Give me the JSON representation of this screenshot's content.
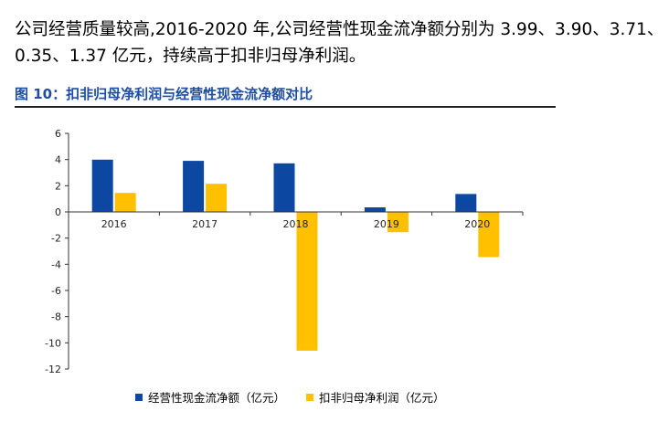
{
  "paragraph": {
    "line1": "公司经营质量较高,2016-2020 年,公司经营性现金流净额分别为 3.99、3.90、3.71、",
    "line2": "0.35、1.37 亿元，持续高于扣非归母净利润。"
  },
  "figure": {
    "title": "图 10：扣非归母净利润与经营性现金流净额对比"
  },
  "colors": {
    "series1": "#0c47a1",
    "series2": "#ffc000",
    "axis": "#333333",
    "title": "#1e4ea1"
  },
  "chart_data": {
    "type": "bar",
    "categories": [
      "2016",
      "2017",
      "2018",
      "2019",
      "2020"
    ],
    "series": [
      {
        "name": "经营性现金流净额（亿元）",
        "values": [
          3.99,
          3.9,
          3.71,
          0.35,
          1.37
        ]
      },
      {
        "name": "扣非归母净利润（亿元）",
        "values": [
          1.45,
          2.15,
          -10.6,
          -1.55,
          -3.45
        ]
      }
    ],
    "ylim": [
      -12,
      6
    ],
    "yticks": [
      6,
      4,
      2,
      0,
      -2,
      -4,
      -6,
      -8,
      -10,
      -12
    ],
    "grid": false,
    "legend": "bottom"
  }
}
